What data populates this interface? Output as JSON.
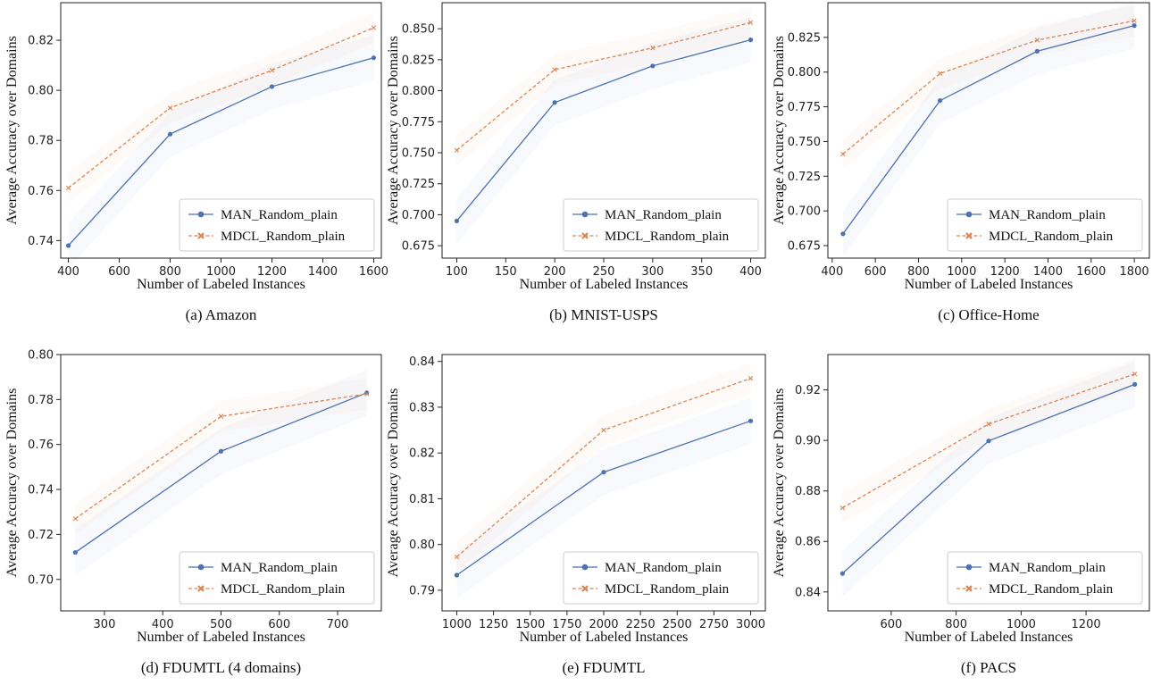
{
  "chart_data": [
    {
      "type": "line",
      "caption": "(a) Amazon",
      "xlabel": "Number of Labeled Instances",
      "ylabel": "Average Accuracy over Domains",
      "xlim": [
        370,
        1630
      ],
      "ylim": [
        0.733,
        0.835
      ],
      "xticks": [
        "400",
        "600",
        "800",
        "1000",
        "1200",
        "1400",
        "1600"
      ],
      "yticks": [
        "0.74",
        "0.76",
        "0.78",
        "0.80",
        "0.82"
      ],
      "legend_position": "lower-right",
      "x": [
        400,
        800,
        1200,
        1600
      ],
      "series": [
        {
          "name": "MAN_Random_plain",
          "values": [
            0.738,
            0.7825,
            0.8015,
            0.813
          ],
          "marker": "circle",
          "dash": "solid",
          "color": "#4c72b0"
        },
        {
          "name": "MDCL_Random_plain",
          "values": [
            0.761,
            0.793,
            0.808,
            0.825
          ],
          "marker": "x",
          "dash": "dashed",
          "color": "#dd8452"
        }
      ]
    },
    {
      "type": "line",
      "caption": "(b) MNIST-USPS",
      "xlabel": "Number of Labeled Instances",
      "ylabel": "Average Accuracy over Domains",
      "xlim": [
        85,
        415
      ],
      "ylim": [
        0.665,
        0.871
      ],
      "xticks": [
        "100",
        "150",
        "200",
        "250",
        "300",
        "350",
        "400"
      ],
      "yticks": [
        "0.675",
        "0.700",
        "0.725",
        "0.750",
        "0.775",
        "0.800",
        "0.825",
        "0.850"
      ],
      "legend_position": "lower-right",
      "x": [
        100,
        200,
        300,
        400
      ],
      "series": [
        {
          "name": "MAN_Random_plain",
          "values": [
            0.695,
            0.7905,
            0.82,
            0.841
          ],
          "marker": "circle",
          "dash": "solid",
          "color": "#4c72b0"
        },
        {
          "name": "MDCL_Random_plain",
          "values": [
            0.752,
            0.817,
            0.8345,
            0.855
          ],
          "marker": "x",
          "dash": "dashed",
          "color": "#dd8452"
        }
      ]
    },
    {
      "type": "line",
      "caption": "(c) Office-Home",
      "xlabel": "Number of Labeled Instances",
      "ylabel": "Average Accuracy over Domains",
      "xlim": [
        380,
        1870
      ],
      "ylim": [
        0.666,
        0.85
      ],
      "xticks": [
        "400",
        "600",
        "800",
        "1000",
        "1200",
        "1400",
        "1600",
        "1800"
      ],
      "yticks": [
        "0.675",
        "0.700",
        "0.725",
        "0.750",
        "0.775",
        "0.800",
        "0.825"
      ],
      "legend_position": "lower-right",
      "x": [
        450,
        900,
        1350,
        1800
      ],
      "series": [
        {
          "name": "MAN_Random_plain",
          "values": [
            0.6835,
            0.7795,
            0.815,
            0.8335
          ],
          "marker": "circle",
          "dash": "solid",
          "color": "#4c72b0"
        },
        {
          "name": "MDCL_Random_plain",
          "values": [
            0.741,
            0.799,
            0.823,
            0.837
          ],
          "marker": "x",
          "dash": "dashed",
          "color": "#dd8452"
        }
      ]
    },
    {
      "type": "line",
      "caption": "(d) FDUMTL (4 domains)",
      "xlabel": "Number of Labeled Instances",
      "ylabel": "Average Accuracy over Domains",
      "xlim": [
        225,
        775
      ],
      "ylim": [
        0.686,
        0.8
      ],
      "xticks": [
        "300",
        "400",
        "500",
        "600",
        "700"
      ],
      "yticks": [
        "0.70",
        "0.72",
        "0.74",
        "0.76",
        "0.78",
        "0.80"
      ],
      "legend_position": "lower-right",
      "x": [
        250,
        500,
        750
      ],
      "series": [
        {
          "name": "MAN_Random_plain",
          "values": [
            0.712,
            0.757,
            0.783
          ],
          "marker": "circle",
          "dash": "solid",
          "color": "#4c72b0"
        },
        {
          "name": "MDCL_Random_plain",
          "values": [
            0.727,
            0.7725,
            0.7825
          ],
          "marker": "x",
          "dash": "dashed",
          "color": "#dd8452"
        }
      ]
    },
    {
      "type": "line",
      "caption": "(e) FDUMTL",
      "xlabel": "Number of Labeled Instances",
      "ylabel": "Average Accuracy over Domains",
      "xlim": [
        900,
        3100
      ],
      "ylim": [
        0.7855,
        0.8415
      ],
      "xticks": [
        "1000",
        "1250",
        "1500",
        "1750",
        "2000",
        "2250",
        "2500",
        "2750",
        "3000"
      ],
      "yticks": [
        "0.79",
        "0.80",
        "0.81",
        "0.82",
        "0.83",
        "0.84"
      ],
      "legend_position": "lower-right",
      "x": [
        1000,
        2000,
        3000
      ],
      "series": [
        {
          "name": "MAN_Random_plain",
          "values": [
            0.7933,
            0.8158,
            0.827
          ],
          "marker": "circle",
          "dash": "solid",
          "color": "#4c72b0"
        },
        {
          "name": "MDCL_Random_plain",
          "values": [
            0.7973,
            0.825,
            0.8363
          ],
          "marker": "x",
          "dash": "dashed",
          "color": "#dd8452"
        }
      ]
    },
    {
      "type": "line",
      "caption": "(f) PACS",
      "xlabel": "Number of Labeled Instances",
      "ylabel": "Average Accuracy over Domains",
      "xlim": [
        405,
        1395
      ],
      "ylim": [
        0.8325,
        0.934
      ],
      "xticks": [
        "600",
        "800",
        "1000",
        "1200"
      ],
      "yticks": [
        "0.84",
        "0.86",
        "0.88",
        "0.90",
        "0.92"
      ],
      "legend_position": "lower-right",
      "x": [
        450,
        900,
        1350
      ],
      "series": [
        {
          "name": "MAN_Random_plain",
          "values": [
            0.8473,
            0.8998,
            0.9222
          ],
          "marker": "circle",
          "dash": "solid",
          "color": "#4c72b0"
        },
        {
          "name": "MDCL_Random_plain",
          "values": [
            0.8733,
            0.9065,
            0.9263
          ],
          "marker": "x",
          "dash": "dashed",
          "color": "#dd8452"
        }
      ]
    }
  ]
}
